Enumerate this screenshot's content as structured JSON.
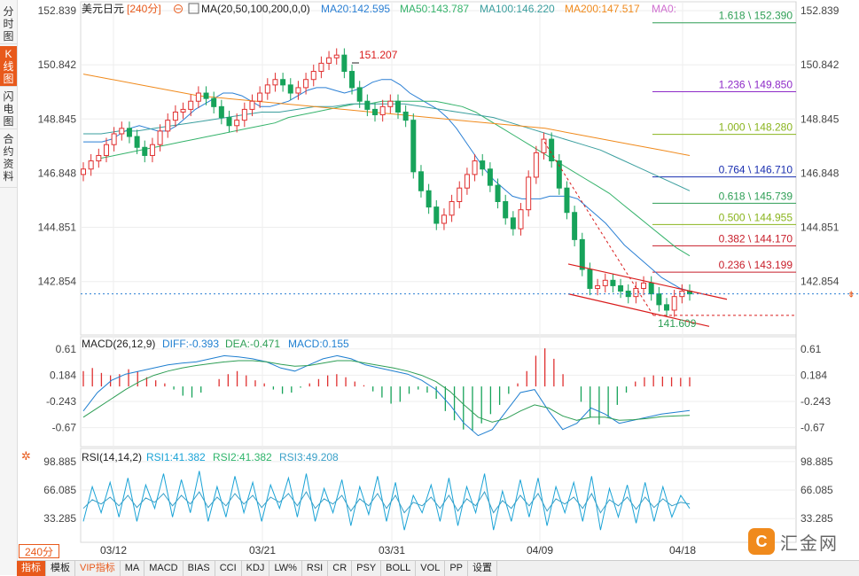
{
  "sidebar": {
    "tabs": [
      {
        "label": "分时图",
        "active": false
      },
      {
        "label": "K线图",
        "active": true
      },
      {
        "label": "闪电图",
        "active": false
      },
      {
        "label": "合约资料",
        "active": false
      }
    ]
  },
  "header": {
    "symbol": "美元日元",
    "period": "[240分]",
    "ma_label": "MA(20,50,100,200,0,0)",
    "ma20": "MA20:142.595",
    "ma50": "MA50:143.787",
    "ma100": "MA100:146.220",
    "ma200": "MA200:147.517",
    "ma0": "MA0:"
  },
  "colors": {
    "up": "#e03030",
    "down": "#17a35a",
    "ma20": "#2a7fd4",
    "ma50": "#35b36b",
    "ma100": "#3a9e9e",
    "ma200": "#f08a1c",
    "diff": "#1f7fd0",
    "dea": "#2e9e55",
    "rsi1": "#1aa3d6",
    "rsi2": "#2fb56b",
    "rsi3": "#39a0c8"
  },
  "macd_header": {
    "label": "MACD(26,12,9)",
    "diff": "DIFF:-0.393",
    "dea": "DEA:-0.471",
    "macd": "MACD:0.155"
  },
  "rsi_header": {
    "label": "RSI(14,14,2)",
    "rsi1": "RSI1:41.382",
    "rsi2": "RSI2:41.382",
    "rsi3": "RSI3:49.208"
  },
  "bottom": {
    "period_badge": "240分",
    "toolbar": [
      "指标",
      "模板",
      "VIP指标",
      "MA",
      "MACD",
      "BIAS",
      "CCI",
      "KDJ",
      "LW%",
      "RSI",
      "CR",
      "PSY",
      "BOLL",
      "VOL",
      "PP",
      "设置"
    ],
    "logo": "汇金网",
    "logo_mark": "C"
  },
  "chart_data": [
    {
      "type": "candlestick",
      "title": "美元日元 240分",
      "x_ticks": [
        "03/12",
        "03/21",
        "03/31",
        "04/09",
        "04/18"
      ],
      "y_ticks": [
        152.839,
        150.842,
        148.845,
        146.848,
        144.851,
        142.854
      ],
      "ylim": [
        140.95,
        153.1
      ],
      "annotations": {
        "high": 151.207,
        "low": 141.609,
        "last_price_approx": 142.4
      },
      "fibonacci": [
        {
          "label": "1.618 \\ 152.390",
          "value": 152.39,
          "color": "#2e9e55"
        },
        {
          "label": "1.236 \\ 149.850",
          "value": 149.85,
          "color": "#8e2bc8"
        },
        {
          "label": "1.000 \\ 148.280",
          "value": 148.28,
          "color": "#8ab41e"
        },
        {
          "label": "0.764 \\ 146.710",
          "value": 146.71,
          "color": "#1a2fb0"
        },
        {
          "label": "0.618 \\ 145.739",
          "value": 145.739,
          "color": "#2e9e55"
        },
        {
          "label": "0.500 \\ 144.955",
          "value": 144.955,
          "color": "#8ab41e"
        },
        {
          "label": "0.382 \\ 144.170",
          "value": 144.17,
          "color": "#c81e2a"
        },
        {
          "label": "0.236 \\ 143.199",
          "value": 143.199,
          "color": "#c81e2a"
        }
      ],
      "close_series": [
        147.0,
        147.3,
        147.5,
        147.9,
        148.3,
        148.5,
        148.2,
        147.8,
        147.5,
        147.9,
        148.4,
        148.8,
        149.1,
        149.2,
        149.5,
        149.8,
        149.6,
        149.3,
        148.9,
        148.6,
        148.8,
        149.2,
        149.5,
        149.8,
        150.1,
        150.3,
        150.1,
        149.8,
        150.0,
        150.3,
        150.6,
        150.9,
        151.1,
        151.2,
        150.6,
        150.0,
        149.5,
        149.2,
        149.0,
        149.3,
        149.5,
        149.1,
        148.8,
        146.9,
        146.2,
        145.6,
        145.0,
        145.3,
        145.8,
        146.3,
        146.8,
        147.3,
        147.0,
        146.4,
        145.8,
        145.2,
        144.8,
        145.5,
        146.7,
        147.6,
        148.1,
        147.3,
        146.3,
        145.4,
        144.4,
        143.3,
        142.6,
        142.7,
        142.9,
        142.7,
        142.5,
        142.3,
        142.6,
        142.8,
        142.4,
        142.0,
        141.8,
        142.3,
        142.5,
        142.4
      ],
      "ma_series": {
        "MA20": [
          148.0,
          148.0,
          148.0,
          148.1,
          148.3,
          148.5,
          148.6,
          148.5,
          148.4,
          148.4,
          148.6,
          148.9,
          149.2,
          149.4,
          149.6,
          149.8,
          149.8,
          149.7,
          149.5,
          149.3,
          149.3,
          149.4,
          149.5,
          149.7,
          149.9,
          150.0,
          150.0,
          149.9,
          149.8,
          149.9,
          150.0,
          150.2,
          150.3,
          150.3,
          150.1,
          149.8,
          149.6,
          149.4,
          149.2,
          148.9,
          148.5,
          148.0,
          147.5,
          147.0,
          146.6,
          146.3,
          146.0,
          145.9,
          145.9,
          145.9,
          146.0,
          146.0,
          146.0,
          145.9,
          145.6,
          145.3,
          145.0,
          144.6,
          144.2,
          143.9,
          143.6,
          143.3,
          143.0,
          142.8,
          142.6,
          142.5
        ],
        "MA50": [
          147.4,
          147.5,
          147.6,
          147.7,
          147.8,
          147.9,
          148.0,
          148.1,
          148.2,
          148.3,
          148.4,
          148.5,
          148.6,
          148.7,
          148.9,
          149.0,
          149.1,
          149.2,
          149.3,
          149.4,
          149.4,
          149.5,
          149.5,
          149.5,
          149.5,
          149.5,
          149.4,
          149.3,
          149.1,
          148.8,
          148.5,
          148.2,
          147.9,
          147.6,
          147.3,
          147.0,
          146.7,
          146.4,
          146.1,
          145.7,
          145.3,
          144.9,
          144.5,
          144.1,
          143.8
        ],
        "MA100": [
          148.3,
          148.3,
          148.4,
          148.4,
          148.5,
          148.6,
          148.7,
          148.8,
          148.9,
          149.0,
          149.1,
          149.1,
          149.2,
          149.3,
          149.3,
          149.4,
          149.4,
          149.4,
          149.4,
          149.3,
          149.2,
          149.1,
          149.0,
          148.9,
          148.7,
          148.5,
          148.3,
          148.1,
          147.9,
          147.7,
          147.4,
          147.1,
          146.8,
          146.5,
          146.2
        ],
        "MA200": [
          150.5,
          150.3,
          150.1,
          149.9,
          149.7,
          149.6,
          149.5,
          149.4,
          149.3,
          149.2,
          149.1,
          149.0,
          148.9,
          148.8,
          148.7,
          148.6,
          148.5,
          148.3,
          148.1,
          147.9,
          147.7,
          147.5
        ]
      }
    },
    {
      "type": "bar",
      "title": "MACD(26,12,9)",
      "y_ticks": [
        0.61,
        0.184,
        -0.243,
        -0.67
      ],
      "ylim": [
        -0.95,
        0.78
      ],
      "histogram": [
        0.25,
        0.3,
        0.22,
        0.18,
        0.2,
        0.28,
        0.24,
        0.15,
        0.1,
        0.05,
        -0.05,
        -0.15,
        -0.18,
        -0.1,
        0.0,
        0.12,
        0.2,
        0.25,
        0.18,
        0.1,
        0.05,
        -0.05,
        -0.12,
        -0.1,
        -0.02,
        0.05,
        0.12,
        0.18,
        0.2,
        0.15,
        0.08,
        0.02,
        -0.08,
        -0.18,
        -0.28,
        -0.25,
        -0.12,
        -0.05,
        -0.1,
        -0.2,
        -0.4,
        -0.55,
        -0.7,
        -0.72,
        -0.6,
        -0.45,
        -0.3,
        -0.12,
        0.05,
        0.25,
        0.5,
        0.62,
        0.45,
        0.2,
        0.0,
        -0.25,
        -0.5,
        -0.62,
        -0.5,
        -0.3,
        -0.1,
        0.08,
        0.15,
        0.18,
        0.16,
        0.15,
        0.14,
        0.15
      ],
      "diff": [
        -0.4,
        -0.1,
        0.1,
        0.2,
        0.25,
        0.3,
        0.35,
        0.38,
        0.4,
        0.45,
        0.5,
        0.48,
        0.45,
        0.4,
        0.3,
        0.25,
        0.35,
        0.45,
        0.5,
        0.45,
        0.35,
        0.3,
        0.25,
        0.2,
        0.1,
        -0.05,
        -0.3,
        -0.6,
        -0.8,
        -0.7,
        -0.4,
        -0.1,
        -0.05,
        -0.4,
        -0.7,
        -0.6,
        -0.35,
        -0.45,
        -0.6,
        -0.55,
        -0.5,
        -0.45,
        -0.42,
        -0.39
      ],
      "dea": [
        -0.5,
        -0.35,
        -0.2,
        -0.05,
        0.08,
        0.18,
        0.25,
        0.3,
        0.34,
        0.37,
        0.4,
        0.42,
        0.42,
        0.4,
        0.36,
        0.33,
        0.34,
        0.38,
        0.42,
        0.42,
        0.38,
        0.34,
        0.3,
        0.25,
        0.18,
        0.08,
        -0.08,
        -0.3,
        -0.5,
        -0.58,
        -0.52,
        -0.4,
        -0.3,
        -0.35,
        -0.48,
        -0.55,
        -0.5,
        -0.5,
        -0.55,
        -0.54,
        -0.52,
        -0.49,
        -0.48,
        -0.47
      ]
    },
    {
      "type": "line",
      "title": "RSI(14,14,2)",
      "y_ticks": [
        98.885,
        66.085,
        33.285
      ],
      "ylim": [
        8,
        112
      ],
      "rsi1": [
        30,
        70,
        40,
        75,
        35,
        80,
        30,
        72,
        45,
        85,
        35,
        78,
        40,
        88,
        30,
        70,
        35,
        82,
        40,
        75,
        30,
        72,
        45,
        80,
        35,
        85,
        30,
        68,
        40,
        78,
        25,
        70,
        38,
        82,
        30,
        75,
        20,
        60,
        40,
        72,
        30,
        80,
        25,
        70,
        40,
        85,
        20,
        65,
        30,
        78,
        35,
        80,
        25,
        70,
        40,
        75,
        30,
        82,
        20,
        68,
        35,
        72,
        28,
        75,
        30,
        70,
        35,
        60,
        45
      ],
      "rsi3": [
        45,
        55,
        50,
        58,
        48,
        60,
        46,
        57,
        52,
        62,
        48,
        60,
        50,
        64,
        46,
        58,
        48,
        62,
        50,
        60,
        46,
        58,
        52,
        62,
        48,
        64,
        45,
        56,
        50,
        60,
        42,
        56,
        48,
        62,
        45,
        60,
        40,
        52,
        48,
        58,
        45,
        60,
        42,
        56,
        48,
        64,
        40,
        54,
        45,
        60,
        48,
        62,
        42,
        56,
        50,
        58,
        45,
        62,
        40,
        55,
        48,
        58,
        44,
        58,
        46,
        56,
        48,
        52,
        50
      ]
    }
  ]
}
